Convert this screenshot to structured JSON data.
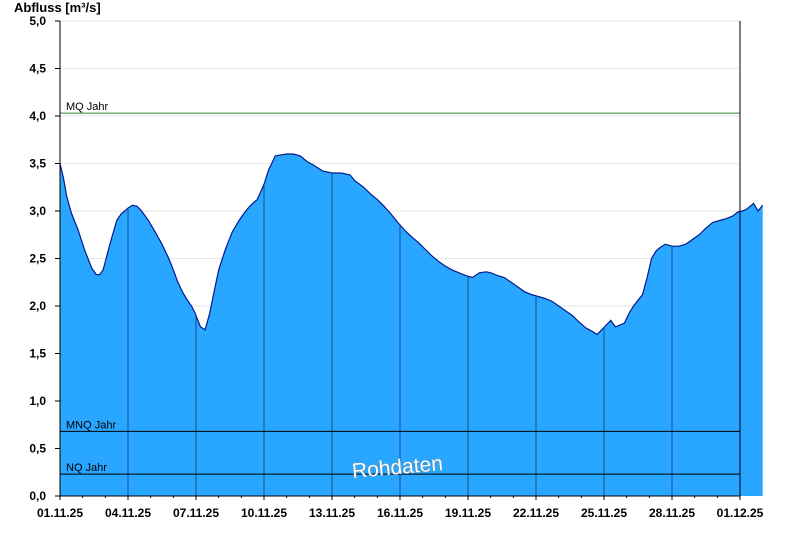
{
  "chart_data": {
    "type": "area",
    "ylabel": "Abfluss [m³/s]",
    "ylim": [
      0,
      5.0
    ],
    "yticks": [
      "0,0",
      "0,5",
      "1,0",
      "1,5",
      "2,0",
      "2,5",
      "3,0",
      "3,5",
      "4,0",
      "4,5",
      "5,0"
    ],
    "x_start": "01.11.25",
    "x_end": "01.12.25",
    "xticks": [
      "01.11.25",
      "04.11.25",
      "07.11.25",
      "10.11.25",
      "13.11.25",
      "16.11.25",
      "19.11.25",
      "22.11.25",
      "25.11.25",
      "28.11.25",
      "01.12.25"
    ],
    "grid": true,
    "series": [
      {
        "x_days": [
          0,
          0.15,
          0.3,
          0.5,
          0.8,
          1.1,
          1.4,
          1.6,
          1.75,
          1.9,
          2.2,
          2.5,
          2.7,
          3.0,
          3.2,
          3.4,
          3.6,
          3.9,
          4.2,
          4.5,
          4.8,
          5.0,
          5.2,
          5.4,
          5.6,
          5.8,
          5.95,
          6.05,
          6.2,
          6.4,
          6.6,
          6.8,
          7.0,
          7.3,
          7.6,
          7.9,
          8.1,
          8.3,
          8.5,
          8.7,
          8.85,
          9.0,
          9.2,
          9.5,
          10.0,
          10.3,
          10.6,
          10.9,
          11.2,
          11.6,
          12.0,
          12.4,
          12.8,
          13.0,
          13.4,
          13.7,
          14.0,
          14.3,
          14.6,
          14.9,
          15.2,
          15.5,
          15.8,
          16.1,
          16.4,
          16.7,
          17.0,
          17.3,
          17.6,
          17.9,
          18.2,
          18.5,
          18.8,
          19.0,
          19.3,
          19.6,
          19.9,
          20.2,
          20.5,
          20.8,
          21.1,
          21.4,
          21.7,
          22.0,
          22.3,
          22.6,
          22.9,
          23.2,
          23.5,
          23.7,
          23.9,
          24.1,
          24.3,
          24.5,
          24.7,
          24.9,
          25.1,
          25.3,
          25.5,
          25.7,
          25.9,
          26.1,
          26.3,
          26.5,
          26.7,
          27.0,
          27.3,
          27.6,
          27.9,
          28.2,
          28.5,
          28.8,
          29.1,
          29.4,
          29.7,
          29.9,
          30.1,
          30.3,
          30.6,
          30.8,
          31.0
        ],
        "values": [
          3.5,
          3.35,
          3.15,
          2.98,
          2.8,
          2.58,
          2.4,
          2.33,
          2.33,
          2.38,
          2.65,
          2.9,
          2.97,
          3.03,
          3.06,
          3.05,
          3.0,
          2.9,
          2.78,
          2.65,
          2.5,
          2.38,
          2.25,
          2.15,
          2.07,
          2.0,
          1.93,
          1.87,
          1.78,
          1.75,
          1.92,
          2.15,
          2.38,
          2.6,
          2.78,
          2.9,
          2.97,
          3.03,
          3.08,
          3.12,
          3.2,
          3.28,
          3.43,
          3.58,
          3.6,
          3.6,
          3.58,
          3.52,
          3.48,
          3.42,
          3.4,
          3.4,
          3.38,
          3.32,
          3.25,
          3.18,
          3.12,
          3.05,
          2.97,
          2.88,
          2.8,
          2.73,
          2.67,
          2.6,
          2.53,
          2.47,
          2.42,
          2.38,
          2.35,
          2.32,
          2.3,
          2.35,
          2.36,
          2.35,
          2.32,
          2.3,
          2.25,
          2.2,
          2.15,
          2.12,
          2.1,
          2.08,
          2.05,
          2.0,
          1.95,
          1.9,
          1.83,
          1.77,
          1.73,
          1.7,
          1.75,
          1.8,
          1.85,
          1.78,
          1.8,
          1.82,
          1.92,
          2.0,
          2.06,
          2.12,
          2.3,
          2.5,
          2.58,
          2.62,
          2.65,
          2.63,
          2.63,
          2.65,
          2.7,
          2.75,
          2.82,
          2.88,
          2.9,
          2.92,
          2.95,
          2.99,
          3.0,
          3.02,
          3.08,
          3.0,
          3.06
        ]
      }
    ],
    "reference_lines": [
      {
        "label": "MQ Jahr",
        "value": 4.03,
        "color": "#2e8b2e"
      },
      {
        "label": "MNQ Jahr",
        "value": 0.68,
        "color": "#000000"
      },
      {
        "label": "NQ Jahr",
        "value": 0.23,
        "color": "#000000"
      }
    ],
    "watermark": "Rohdaten",
    "colors": {
      "area": "#29a6ff",
      "outline": "#001a8c",
      "grid": "#e6e6e6",
      "day_lines": "#1b4f8a"
    }
  }
}
